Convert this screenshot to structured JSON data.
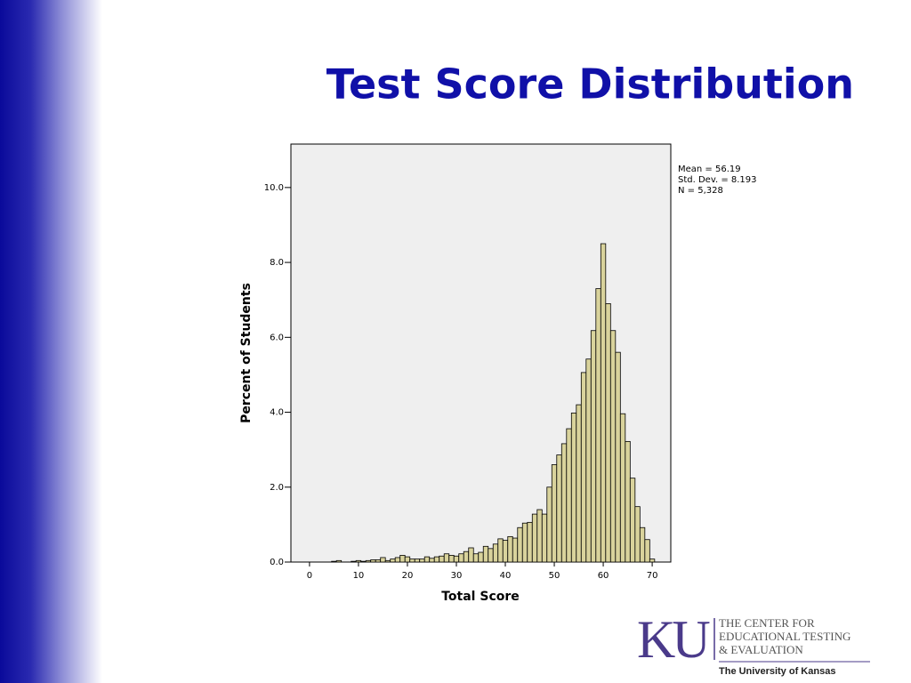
{
  "chart_data": {
    "type": "histogram",
    "title": "Test Score Distribution",
    "xlabel": "Total Score",
    "ylabel": "Percent of Students",
    "annotations": [
      "Mean = 56.19",
      "Std. Dev. = 8.193",
      "N = 5,328"
    ],
    "bins": [
      4.5,
      5.5,
      6.5,
      7.5,
      8.5,
      9.5,
      10.5,
      11.5,
      12.5,
      13.5,
      14.5,
      15.5,
      16.5,
      17.5,
      18.5,
      19.5,
      20.5,
      21.5,
      22.5,
      23.5,
      24.5,
      25.5,
      26.5,
      27.5,
      28.5,
      29.5,
      30.5,
      31.5,
      32.5,
      33.5,
      34.5,
      35.5,
      36.5,
      37.5,
      38.5,
      39.5,
      40.5,
      41.5,
      42.5,
      43.5,
      44.5,
      45.5,
      46.5,
      47.5,
      48.5,
      49.5,
      50.5,
      51.5,
      52.5,
      53.5,
      54.5,
      55.5,
      56.5,
      57.5,
      58.5,
      59.5,
      60.5,
      61.5,
      62.5,
      63.5,
      64.5,
      65.5,
      66.5,
      67.5,
      68.5,
      69.5,
      70.5
    ],
    "values": [
      0.02,
      0.04,
      0,
      0,
      0.02,
      0.04,
      0.02,
      0.04,
      0.06,
      0.06,
      0.12,
      0.04,
      0.08,
      0.12,
      0.18,
      0.14,
      0.08,
      0.08,
      0.08,
      0.14,
      0.1,
      0.14,
      0.16,
      0.22,
      0.18,
      0.16,
      0.22,
      0.28,
      0.38,
      0.22,
      0.26,
      0.42,
      0.36,
      0.48,
      0.62,
      0.58,
      0.68,
      0.64,
      0.92,
      1.04,
      1.06,
      1.28,
      1.4,
      1.28,
      2.0,
      2.6,
      2.86,
      3.16,
      3.56,
      3.98,
      4.2,
      5.06,
      5.42,
      6.18,
      7.3,
      8.5,
      6.9,
      6.18,
      5.6,
      3.96,
      3.22,
      2.24,
      1.48,
      0.92,
      0.6,
      0.08
    ],
    "color": "#d9d39c",
    "xlim": [
      -3.8,
      73.8
    ],
    "ylim": [
      0,
      11.16
    ],
    "xticks": [
      0,
      10,
      20,
      30,
      40,
      50,
      60,
      70
    ],
    "yticks": [
      {
        "value": 0,
        "label": "0.0"
      },
      {
        "value": 2,
        "label": "2.0"
      },
      {
        "value": 4,
        "label": "4.0"
      },
      {
        "value": 6,
        "label": "6.0"
      },
      {
        "value": 8,
        "label": "8.0"
      },
      {
        "value": 10,
        "label": "10.0"
      }
    ]
  },
  "logo": {
    "mark": "KU",
    "lines": [
      "THE CENTER FOR",
      "EDUCATIONAL TESTING",
      "& EVALUATION"
    ],
    "university": "The University of Kansas"
  }
}
